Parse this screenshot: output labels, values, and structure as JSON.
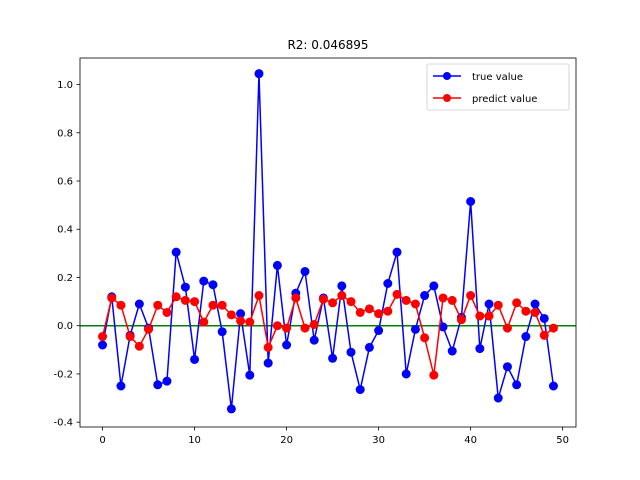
{
  "chart_data": {
    "type": "line",
    "title": "R2: 0.046895",
    "xlabel": "",
    "ylabel": "",
    "xlim": [
      -2.45,
      51.45
    ],
    "ylim": [
      -0.42,
      1.11
    ],
    "xticks": [
      0,
      10,
      20,
      30,
      40,
      50
    ],
    "yticks": [
      -0.4,
      -0.2,
      0.0,
      0.2,
      0.4,
      0.6,
      0.8,
      1.0
    ],
    "ytick_labels": [
      "-0.4",
      "-0.2",
      "0.0",
      "0.2",
      "0.4",
      "0.6",
      "0.8",
      "1.0"
    ],
    "grid": false,
    "legend_position": "top-right",
    "reference_line": {
      "y": 0.0,
      "color": "#008000"
    },
    "x": [
      0,
      1,
      2,
      3,
      4,
      5,
      6,
      7,
      8,
      9,
      10,
      11,
      12,
      13,
      14,
      15,
      16,
      17,
      18,
      19,
      20,
      21,
      22,
      23,
      24,
      25,
      26,
      27,
      28,
      29,
      30,
      31,
      32,
      33,
      34,
      35,
      36,
      37,
      38,
      39,
      40,
      41,
      42,
      43,
      44,
      45,
      46,
      47,
      48,
      49
    ],
    "series": [
      {
        "name": "true value",
        "color": "#0000ff",
        "values": [
          -0.08,
          0.12,
          -0.25,
          -0.04,
          0.09,
          -0.01,
          -0.245,
          -0.23,
          0.305,
          0.16,
          -0.14,
          0.185,
          0.17,
          -0.025,
          -0.345,
          0.05,
          -0.205,
          1.045,
          -0.155,
          0.25,
          -0.08,
          0.135,
          0.225,
          -0.06,
          0.115,
          -0.135,
          0.165,
          -0.11,
          -0.265,
          -0.09,
          -0.02,
          0.175,
          0.305,
          -0.2,
          -0.015,
          0.125,
          0.165,
          -0.005,
          -0.105,
          0.035,
          0.515,
          -0.095,
          0.09,
          -0.3,
          -0.17,
          -0.245,
          -0.045,
          0.09,
          0.03,
          -0.25
        ]
      },
      {
        "name": "predict value",
        "color": "#ff0000",
        "values": [
          -0.045,
          0.115,
          0.085,
          -0.045,
          -0.085,
          -0.015,
          0.085,
          0.055,
          0.12,
          0.105,
          0.1,
          0.015,
          0.085,
          0.085,
          0.045,
          0.02,
          0.015,
          0.125,
          -0.09,
          0.0,
          -0.01,
          0.115,
          -0.01,
          0.005,
          0.11,
          0.095,
          0.125,
          0.1,
          0.055,
          0.07,
          0.05,
          0.06,
          0.13,
          0.105,
          0.09,
          -0.05,
          -0.205,
          0.115,
          0.105,
          0.025,
          0.125,
          0.04,
          0.04,
          0.085,
          -0.01,
          0.095,
          0.06,
          0.055,
          -0.04,
          -0.01
        ]
      }
    ]
  }
}
